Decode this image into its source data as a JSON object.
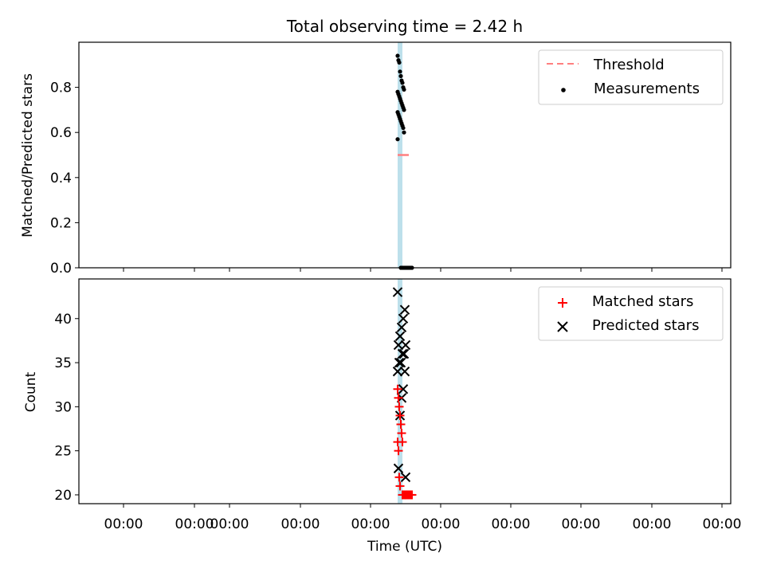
{
  "chart_data": {
    "type": "scatter",
    "title": "Total observing time = 2.42 h",
    "xlabel": "Time (UTC)",
    "x_tick_labels": [
      "00:00",
      "00:00",
      "00:00",
      "00:00",
      "00:00",
      "00:00",
      "00:00",
      "00:00",
      "00:00",
      "00:00"
    ],
    "panels": [
      {
        "id": "ratio",
        "ylabel": "Matched/Predicted stars",
        "ylim": [
          0,
          1.0
        ],
        "yticks": [
          0.0,
          0.2,
          0.4,
          0.6,
          0.8
        ],
        "ytick_labels": [
          "0.0",
          "0.2",
          "0.4",
          "0.6",
          "0.8"
        ],
        "legend": {
          "position": "top-right",
          "entries": [
            "Threshold",
            "Measurements"
          ]
        },
        "threshold": {
          "name": "Threshold",
          "value": 0.5,
          "color": "#ff7f7f"
        },
        "series": [
          {
            "name": "Measurements",
            "color": "#000000",
            "marker": "dot",
            "y": [
              0.94,
              0.92,
              0.91,
              0.87,
              0.85,
              0.83,
              0.82,
              0.8,
              0.79,
              0.78,
              0.77,
              0.76,
              0.75,
              0.74,
              0.73,
              0.72,
              0.71,
              0.7,
              0.69,
              0.68,
              0.67,
              0.66,
              0.65,
              0.64,
              0.63,
              0.62,
              0.6,
              0.57,
              0.0,
              0.0,
              0.0,
              0.0,
              0.0,
              0.0,
              0.0,
              0.0
            ]
          }
        ]
      },
      {
        "id": "count",
        "ylabel": "Count",
        "ylim": [
          19,
          44.5
        ],
        "yticks": [
          20,
          25,
          30,
          35,
          40
        ],
        "ytick_labels": [
          "20",
          "25",
          "30",
          "35",
          "40"
        ],
        "legend": {
          "position": "top-right",
          "entries": [
            "Matched stars",
            "Predicted stars"
          ]
        },
        "series": [
          {
            "name": "Matched stars",
            "color": "#ff0000",
            "marker": "plus",
            "y": [
              32,
              31,
              30,
              29,
              28,
              27,
              26,
              26,
              25,
              22,
              21,
              20,
              20,
              20,
              20,
              20,
              20,
              20
            ]
          },
          {
            "name": "Predicted stars",
            "color": "#000000",
            "marker": "x",
            "y": [
              43,
              41,
              40,
              39,
              38,
              37,
              37,
              36,
              36,
              35,
              35,
              34,
              34,
              32,
              31,
              29,
              23,
              22
            ]
          }
        ]
      }
    ],
    "highlight_band_color": "#add8e6"
  }
}
